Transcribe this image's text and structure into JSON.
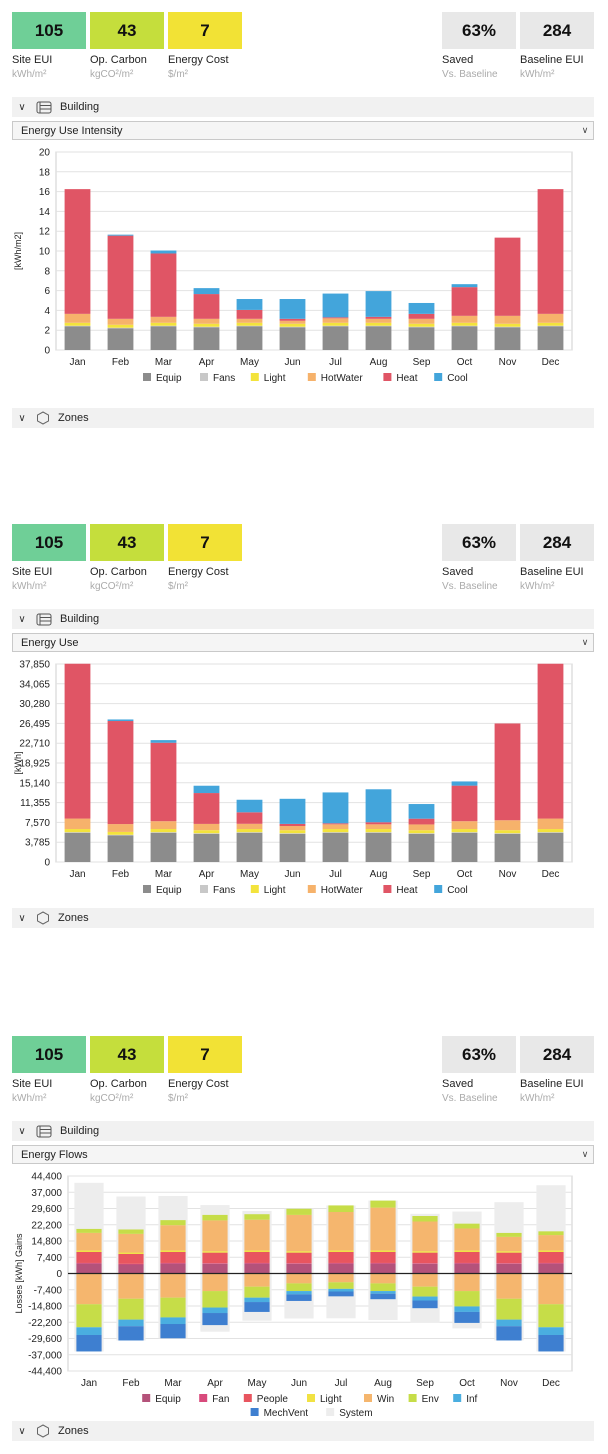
{
  "kpis": {
    "site_eui": {
      "value": "105",
      "label": "Site EUI",
      "unit": "kWh/m²",
      "color": "#6fcf97"
    },
    "op_carbon": {
      "value": "43",
      "label": "Op. Carbon",
      "unit": "kgCO²/m²",
      "color": "#c5de3c"
    },
    "energy_cost": {
      "value": "7",
      "label": "Energy Cost",
      "unit": "$/m²",
      "color": "#f2e235"
    },
    "saved": {
      "value": "63%",
      "label": "Saved",
      "unit": "Vs. Baseline",
      "color": "#e8e8e8"
    },
    "baseline_eui": {
      "value": "284",
      "label": "Baseline EUI",
      "unit": "kWh/m²",
      "color": "#e8e8e8"
    }
  },
  "sections": {
    "building": "Building",
    "zones": "Zones"
  },
  "panels": [
    {
      "dropdown": "Energy Use Intensity"
    },
    {
      "dropdown": "Energy Use"
    },
    {
      "dropdown": "Energy Flows"
    }
  ],
  "chart_data": [
    {
      "type": "bar",
      "stacked": true,
      "title": "",
      "ylabel": "[kWh/m2]",
      "ylim": [
        0,
        20
      ],
      "yticks": [
        "0",
        "2",
        "4",
        "6",
        "8",
        "10",
        "12",
        "14",
        "16",
        "18",
        "20"
      ],
      "categories": [
        "Jan",
        "Feb",
        "Mar",
        "Apr",
        "May",
        "Jun",
        "Jul",
        "Aug",
        "Sep",
        "Oct",
        "Nov",
        "Dec"
      ],
      "grid": true,
      "legend_position": "bottom",
      "series": [
        {
          "name": "Equip",
          "color": "#8c8c8c",
          "values": [
            2.4,
            2.2,
            2.4,
            2.3,
            2.4,
            2.3,
            2.4,
            2.4,
            2.3,
            2.4,
            2.3,
            2.4
          ]
        },
        {
          "name": "Fans",
          "color": "#c8c8c8",
          "values": [
            0.05,
            0.05,
            0.05,
            0.05,
            0.05,
            0.05,
            0.05,
            0.05,
            0.05,
            0.05,
            0.05,
            0.05
          ]
        },
        {
          "name": "Light",
          "color": "#f3e33c",
          "values": [
            0.3,
            0.3,
            0.3,
            0.3,
            0.3,
            0.3,
            0.3,
            0.3,
            0.3,
            0.3,
            0.3,
            0.3
          ]
        },
        {
          "name": "HotWater",
          "color": "#f6b26b",
          "values": [
            0.9,
            0.6,
            0.6,
            0.5,
            0.4,
            0.3,
            0.45,
            0.4,
            0.5,
            0.7,
            0.8,
            0.9
          ]
        },
        {
          "name": "Heat",
          "color": "#e05565",
          "values": [
            12.6,
            8.4,
            6.4,
            2.5,
            0.9,
            0.2,
            0.1,
            0.2,
            0.5,
            2.9,
            7.9,
            12.6
          ]
        },
        {
          "name": "Cool",
          "color": "#43a5db",
          "values": [
            0,
            0.1,
            0.3,
            0.6,
            1.1,
            2.0,
            2.4,
            2.6,
            1.1,
            0.3,
            0,
            0
          ]
        }
      ]
    },
    {
      "type": "bar",
      "stacked": true,
      "title": "",
      "ylabel": "[kWh]",
      "ylim": [
        0,
        37850
      ],
      "yticks": [
        "0",
        "3,785",
        "7,570",
        "11,355",
        "15,140",
        "18,925",
        "22,710",
        "26,495",
        "30,280",
        "34,065",
        "37,850"
      ],
      "categories": [
        "Jan",
        "Feb",
        "Mar",
        "Apr",
        "May",
        "Jun",
        "Jul",
        "Aug",
        "Sep",
        "Oct",
        "Nov",
        "Dec"
      ],
      "grid": true,
      "legend_position": "bottom",
      "series": [
        {
          "name": "Equip",
          "color": "#8c8c8c",
          "values": [
            5600,
            5100,
            5600,
            5400,
            5600,
            5400,
            5600,
            5600,
            5400,
            5600,
            5400,
            5600
          ]
        },
        {
          "name": "Fans",
          "color": "#c8c8c8",
          "values": [
            100,
            100,
            100,
            100,
            100,
            100,
            100,
            100,
            100,
            100,
            100,
            100
          ]
        },
        {
          "name": "Light",
          "color": "#f3e33c",
          "values": [
            600,
            550,
            600,
            580,
            600,
            580,
            600,
            600,
            580,
            600,
            580,
            600
          ]
        },
        {
          "name": "HotWater",
          "color": "#f6b26b",
          "values": [
            2000,
            1500,
            1500,
            1200,
            1000,
            800,
            900,
            900,
            1100,
            1500,
            1900,
            2000
          ]
        },
        {
          "name": "Heat",
          "color": "#e05565",
          "values": [
            29600,
            19700,
            15000,
            5900,
            2200,
            400,
            200,
            400,
            1100,
            6800,
            18500,
            29600
          ]
        },
        {
          "name": "Cool",
          "color": "#43a5db",
          "values": [
            0,
            300,
            500,
            1400,
            2400,
            4800,
            5900,
            6300,
            2800,
            800,
            0,
            0
          ]
        }
      ]
    },
    {
      "type": "bar",
      "stacked": true,
      "diverging": true,
      "title": "",
      "ylabel": "Losses   [kWh]   Gains",
      "ylim": [
        -44400,
        44400
      ],
      "yticks": [
        "-44,400",
        "-37,000",
        "-29,600",
        "-22,200",
        "-14,800",
        "-7,400",
        "0",
        "7,400",
        "14,800",
        "22,200",
        "29,600",
        "37,000",
        "44,400"
      ],
      "categories": [
        "Jan",
        "Feb",
        "Mar",
        "Apr",
        "May",
        "Jun",
        "Jul",
        "Aug",
        "Sep",
        "Oct",
        "Nov",
        "Dec"
      ],
      "grid": true,
      "legend_position": "bottom",
      "series": [
        {
          "name": "Equip",
          "color": "#b4527a",
          "gains": [
            4500,
            4100,
            4500,
            4400,
            4500,
            4400,
            4500,
            4500,
            4400,
            4500,
            4400,
            4500
          ],
          "losses": [
            0,
            0,
            0,
            0,
            0,
            0,
            0,
            0,
            0,
            0,
            0,
            0
          ]
        },
        {
          "name": "Fan",
          "color": "#d84a7c",
          "gains": [
            300,
            300,
            300,
            300,
            300,
            300,
            300,
            300,
            300,
            300,
            300,
            300
          ],
          "losses": [
            0,
            0,
            0,
            0,
            0,
            0,
            0,
            0,
            0,
            0,
            0,
            0
          ]
        },
        {
          "name": "People",
          "color": "#e8555f",
          "gains": [
            5000,
            4500,
            5000,
            4800,
            5000,
            4800,
            5000,
            5000,
            4800,
            5000,
            4800,
            5000
          ],
          "losses": [
            0,
            0,
            0,
            0,
            0,
            0,
            0,
            0,
            0,
            0,
            0,
            0
          ]
        },
        {
          "name": "Light",
          "color": "#f1e243",
          "gains": [
            700,
            650,
            700,
            680,
            700,
            680,
            700,
            700,
            680,
            700,
            680,
            700
          ],
          "losses": [
            0,
            0,
            0,
            0,
            0,
            0,
            0,
            0,
            0,
            0,
            0,
            0
          ]
        },
        {
          "name": "Win",
          "color": "#f5b66e",
          "gains": [
            8000,
            8500,
            11500,
            14000,
            14000,
            16500,
            17500,
            19500,
            13500,
            10000,
            6500,
            7000
          ],
          "losses": [
            -14000,
            -11500,
            -11000,
            -8000,
            -6000,
            -4500,
            -4000,
            -4500,
            -6000,
            -8000,
            -11500,
            -14000
          ]
        },
        {
          "name": "Env",
          "color": "#c6dd48",
          "gains": [
            1800,
            2000,
            2300,
            2500,
            2500,
            2800,
            3000,
            3200,
            2500,
            2200,
            1800,
            1700
          ],
          "losses": [
            -10500,
            -9500,
            -9000,
            -7500,
            -5000,
            -3500,
            -3000,
            -3500,
            -4500,
            -7000,
            -9500,
            -10500
          ]
        },
        {
          "name": "Inf",
          "color": "#4aaee0",
          "gains": [
            0,
            0,
            0,
            0,
            0,
            0,
            0,
            0,
            0,
            0,
            0,
            0
          ],
          "losses": [
            -3500,
            -3000,
            -3000,
            -2500,
            -2000,
            -1500,
            -1200,
            -1200,
            -1800,
            -2500,
            -3000,
            -3500
          ]
        },
        {
          "name": "MechVent",
          "color": "#3e7fd0",
          "gains": [
            0,
            0,
            0,
            0,
            0,
            0,
            0,
            0,
            0,
            0,
            0,
            0
          ],
          "losses": [
            -7500,
            -6500,
            -6500,
            -5500,
            -4500,
            -3000,
            -2200,
            -2500,
            -3500,
            -5000,
            -6500,
            -7500
          ]
        },
        {
          "name": "System",
          "color": "#ededed",
          "gains": [
            21000,
            15000,
            11000,
            4500,
            1500,
            0,
            0,
            0,
            1000,
            5500,
            14000,
            21000
          ],
          "losses": [
            0,
            0,
            0,
            -3000,
            -4000,
            -8000,
            -10000,
            -9500,
            -6500,
            -2500,
            0,
            0
          ]
        }
      ]
    }
  ]
}
